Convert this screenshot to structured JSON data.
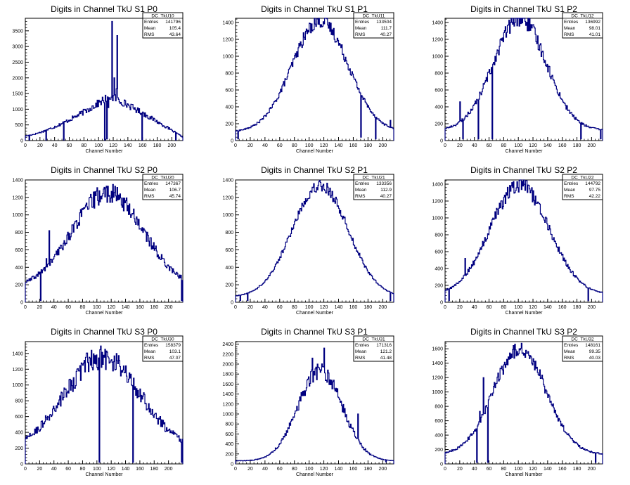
{
  "chart_data": [
    {
      "type": "histogram",
      "title": "Digits in Channel TkU S1 P0",
      "xlabel": "Channel Number",
      "ylabel": "",
      "xlim": [
        0,
        215
      ],
      "ylim": [
        0,
        3900
      ],
      "xticks": [
        0,
        20,
        40,
        60,
        80,
        100,
        120,
        140,
        160,
        180,
        200
      ],
      "yticks": [
        0,
        500,
        1000,
        1500,
        2000,
        2500,
        3000,
        3500
      ],
      "stats": {
        "name": "DC_TkU10",
        "rows": [
          {
            "label": "Entries",
            "value": "141796"
          },
          {
            "label": "Mean",
            "value": "105.4"
          },
          {
            "label": "RMS",
            "value": "43.64"
          }
        ]
      },
      "shape": {
        "kind": "ramp",
        "start": [
          0,
          150
        ],
        "end": [
          215,
          110
        ],
        "peak": [
          115,
          1420
        ],
        "noise": 0.1
      },
      "spikes": [
        [
          118,
          3800
        ],
        [
          125,
          3350
        ],
        [
          113,
          1050
        ],
        [
          121,
          2000
        ],
        [
          124,
          1650
        ]
      ],
      "dips": [
        [
          5,
          20
        ],
        [
          28,
          20
        ],
        [
          52,
          20
        ],
        [
          108,
          20
        ],
        [
          111,
          50
        ],
        [
          159,
          20
        ],
        [
          205,
          20
        ]
      ]
    },
    {
      "type": "histogram",
      "title": "Digits in Channel TkU S1 P1",
      "xlabel": "Channel Number",
      "ylabel": "",
      "xlim": [
        0,
        215
      ],
      "ylim": [
        0,
        1450
      ],
      "xticks": [
        0,
        20,
        40,
        60,
        80,
        100,
        120,
        140,
        160,
        180,
        200
      ],
      "yticks": [
        0,
        200,
        400,
        600,
        800,
        1000,
        1200,
        1400
      ],
      "stats": {
        "name": "DC_TkU11",
        "rows": [
          {
            "label": "Entries",
            "value": "133504"
          },
          {
            "label": "Mean",
            "value": "111.7"
          },
          {
            "label": "RMS",
            "value": "40.27"
          }
        ]
      },
      "shape": {
        "kind": "gauss",
        "mean": 115,
        "sigma": 38,
        "amp": 1320,
        "base": 100,
        "noise": 0.06
      },
      "spikes": [
        [
          210,
          240
        ]
      ],
      "dips": [
        [
          3,
          20
        ],
        [
          170,
          40
        ],
        [
          190,
          20
        ]
      ]
    },
    {
      "type": "histogram",
      "title": "Digits in Channel TkU S1 P2",
      "xlabel": "Channel Number",
      "ylabel": "",
      "xlim": [
        0,
        215
      ],
      "ylim": [
        0,
        1450
      ],
      "xticks": [
        0,
        20,
        40,
        60,
        80,
        100,
        120,
        140,
        160,
        180,
        200
      ],
      "yticks": [
        0,
        200,
        400,
        600,
        800,
        1000,
        1200,
        1400
      ],
      "stats": {
        "name": "DC_TkU12",
        "rows": [
          {
            "label": "Entries",
            "value": "136992"
          },
          {
            "label": "Mean",
            "value": "98.01"
          },
          {
            "label": "RMS",
            "value": "41.01"
          }
        ]
      },
      "shape": {
        "kind": "gauss",
        "mean": 102,
        "sigma": 36,
        "amp": 1330,
        "base": 120,
        "noise": 0.07
      },
      "spikes": [
        [
          20,
          460
        ]
      ],
      "dips": [
        [
          24,
          20
        ],
        [
          45,
          20
        ],
        [
          64,
          20
        ],
        [
          185,
          20
        ],
        [
          212,
          20
        ]
      ]
    },
    {
      "type": "histogram",
      "title": "Digits in Channel TkU S2 P0",
      "xlabel": "Channel Number",
      "ylabel": "",
      "xlim": [
        0,
        220
      ],
      "ylim": [
        0,
        1400
      ],
      "xticks": [
        0,
        20,
        40,
        60,
        80,
        100,
        120,
        140,
        160,
        180,
        200
      ],
      "yticks": [
        0,
        200,
        400,
        600,
        800,
        1000,
        1200,
        1400
      ],
      "stats": {
        "name": "DC_TkU20",
        "rows": [
          {
            "label": "Entries",
            "value": "147367"
          },
          {
            "label": "Mean",
            "value": "106.7"
          },
          {
            "label": "RMS",
            "value": "45.74"
          }
        ]
      },
      "shape": {
        "kind": "gauss",
        "mean": 115,
        "sigma": 50,
        "amp": 1100,
        "base": 150,
        "noise": 0.09
      },
      "spikes": [
        [
          33,
          820
        ],
        [
          29,
          500
        ]
      ],
      "dips": [
        [
          21,
          20
        ],
        [
          218,
          20
        ]
      ]
    },
    {
      "type": "histogram",
      "title": "Digits in Channel TkU S2 P1",
      "xlabel": "Channel Number",
      "ylabel": "",
      "xlim": [
        0,
        215
      ],
      "ylim": [
        0,
        1400
      ],
      "xticks": [
        0,
        20,
        40,
        60,
        80,
        100,
        120,
        140,
        160,
        180,
        200
      ],
      "yticks": [
        0,
        200,
        400,
        600,
        800,
        1000,
        1200,
        1400
      ],
      "stats": {
        "name": "DC_TkU21",
        "rows": [
          {
            "label": "Entries",
            "value": "133356"
          },
          {
            "label": "Mean",
            "value": "112.9"
          },
          {
            "label": "RMS",
            "value": "40.27"
          }
        ]
      },
      "shape": {
        "kind": "gauss",
        "mean": 115,
        "sigma": 38,
        "amp": 1280,
        "base": 60,
        "noise": 0.05
      },
      "spikes": [],
      "dips": [
        [
          6,
          20
        ],
        [
          16,
          20
        ],
        [
          210,
          20
        ]
      ]
    },
    {
      "type": "histogram",
      "title": "Digits in Channel TkU S2 P2",
      "xlabel": "Channel Number",
      "ylabel": "",
      "xlim": [
        0,
        215
      ],
      "ylim": [
        0,
        1450
      ],
      "xticks": [
        0,
        20,
        40,
        60,
        80,
        100,
        120,
        140,
        160,
        180,
        200
      ],
      "yticks": [
        0,
        200,
        400,
        600,
        800,
        1000,
        1200,
        1400
      ],
      "stats": {
        "name": "DC_TkU22",
        "rows": [
          {
            "label": "Entries",
            "value": "144792"
          },
          {
            "label": "Mean",
            "value": "97.75"
          },
          {
            "label": "RMS",
            "value": "42.22"
          }
        ]
      },
      "shape": {
        "kind": "gauss",
        "mean": 102,
        "sigma": 40,
        "amp": 1300,
        "base": 90,
        "noise": 0.07
      },
      "spikes": [
        [
          27,
          520
        ]
      ],
      "dips": [
        [
          5,
          20
        ],
        [
          195,
          20
        ]
      ]
    },
    {
      "type": "histogram",
      "title": "Digits in Channel TkU S3 P0",
      "xlabel": "Channel Number",
      "ylabel": "",
      "xlim": [
        0,
        220
      ],
      "ylim": [
        0,
        1550
      ],
      "xticks": [
        0,
        20,
        40,
        60,
        80,
        100,
        120,
        140,
        160,
        180,
        200
      ],
      "yticks": [
        0,
        200,
        400,
        600,
        800,
        1000,
        1200,
        1400
      ],
      "stats": {
        "name": "DC_TkU30",
        "rows": [
          {
            "label": "Entries",
            "value": "158379"
          },
          {
            "label": "Mean",
            "value": "103.1"
          },
          {
            "label": "RMS",
            "value": "47.07"
          }
        ]
      },
      "shape": {
        "kind": "gauss",
        "mean": 108,
        "sigma": 52,
        "amp": 1180,
        "base": 180,
        "noise": 0.12
      },
      "spikes": [],
      "dips": [
        [
          103,
          20
        ],
        [
          150,
          20
        ],
        [
          218,
          20
        ]
      ]
    },
    {
      "type": "histogram",
      "title": "Digits in Channel TkU S3 P1",
      "xlabel": "Channel Number",
      "ylabel": "",
      "xlim": [
        0,
        215
      ],
      "ylim": [
        0,
        2450
      ],
      "xticks": [
        0,
        20,
        40,
        60,
        80,
        100,
        120,
        140,
        160,
        180,
        200
      ],
      "yticks": [
        0,
        200,
        400,
        600,
        800,
        1000,
        1200,
        1400,
        1600,
        1800,
        2000,
        2200,
        2400
      ],
      "stats": {
        "name": "DC_TkU31",
        "rows": [
          {
            "label": "Entries",
            "value": "171316"
          },
          {
            "label": "Mean",
            "value": "121.2"
          },
          {
            "label": "RMS",
            "value": "41.48"
          }
        ]
      },
      "shape": {
        "kind": "gauss",
        "mean": 115,
        "sigma": 30,
        "amp": 1800,
        "base": 60,
        "noise": 0.09
      },
      "spikes": [
        [
          120,
          2320
        ],
        [
          104,
          2120
        ],
        [
          111,
          2000
        ],
        [
          166,
          1000
        ]
      ],
      "dips": [
        [
          204,
          40
        ]
      ]
    },
    {
      "type": "histogram",
      "title": "Digits in Channel TkU S3 P2",
      "xlabel": "Channel Number",
      "ylabel": "",
      "xlim": [
        0,
        215
      ],
      "ylim": [
        0,
        1700
      ],
      "xticks": [
        0,
        20,
        40,
        60,
        80,
        100,
        120,
        140,
        160,
        180,
        200
      ],
      "yticks": [
        0,
        200,
        400,
        600,
        800,
        1000,
        1200,
        1400,
        1600
      ],
      "stats": {
        "name": "DC_TkU32",
        "rows": [
          {
            "label": "Entries",
            "value": "148161"
          },
          {
            "label": "Mean",
            "value": "99.35"
          },
          {
            "label": "RMS",
            "value": "40.03"
          }
        ]
      },
      "shape": {
        "kind": "gauss",
        "mean": 102,
        "sigma": 36,
        "amp": 1470,
        "base": 130,
        "noise": 0.07
      },
      "spikes": [
        [
          47,
          730
        ],
        [
          52,
          1200
        ]
      ],
      "dips": [
        [
          43,
          20
        ],
        [
          58,
          20
        ],
        [
          205,
          20
        ]
      ]
    }
  ]
}
